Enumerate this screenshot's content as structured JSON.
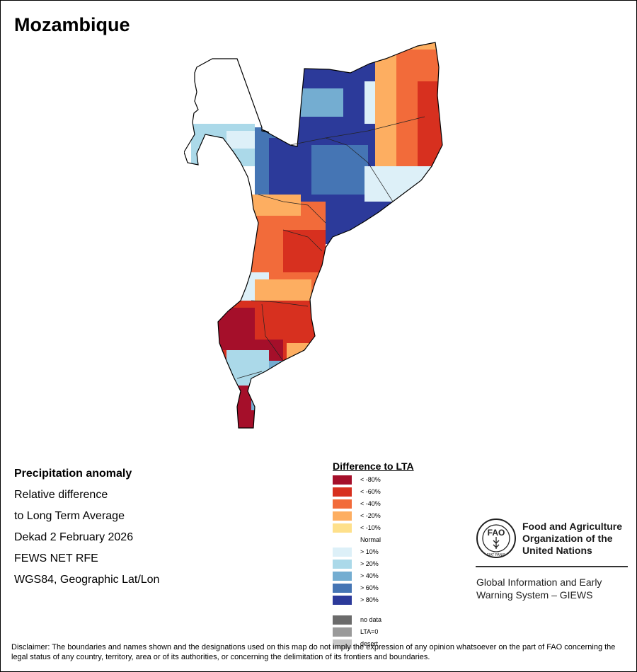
{
  "title": "Mozambique",
  "info": {
    "heading": "Precipitation anomaly",
    "lines": [
      "Relative difference",
      "to Long Term Average",
      "Dekad 2 February 2026",
      "FEWS NET RFE",
      "WGS84, Geographic Lat/Lon"
    ]
  },
  "legend": {
    "title": "Difference to LTA",
    "items": [
      {
        "label": "< -80%",
        "color": "#a50f2a"
      },
      {
        "label": "< -60%",
        "color": "#d7301f"
      },
      {
        "label": "< -40%",
        "color": "#f26b3a"
      },
      {
        "label": "< -20%",
        "color": "#fdae61"
      },
      {
        "label": "< -10%",
        "color": "#fee08b"
      },
      {
        "label": "Normal",
        "color": "#ffffff"
      },
      {
        "label": "> 10%",
        "color": "#ddf0f8"
      },
      {
        "label": "> 20%",
        "color": "#abd9e9"
      },
      {
        "label": "> 40%",
        "color": "#74add1"
      },
      {
        "label": "> 60%",
        "color": "#4575b4"
      },
      {
        "label": "> 80%",
        "color": "#2c3a9a"
      },
      {
        "label": "no data",
        "color": "#6b6b6b"
      },
      {
        "label": "LTA=0",
        "color": "#9a9a9a"
      },
      {
        "label": "desert",
        "color": "#c8c8c8"
      }
    ]
  },
  "fao": {
    "emblem_text": "FAO",
    "emblem_motto": "FIAT PANIS",
    "org_lines": [
      "Food and Agriculture",
      "Organization of the",
      "United Nations"
    ],
    "system_lines": [
      "Global Information and Early",
      "Warning System – GIEWS"
    ]
  },
  "disclaimer": "Disclaimer: The boundaries and names shown and the designations used on this map do not imply the expression of any opinion whatsoever on the part of FAO concerning the legal status of any country, territory, area or of its authorities, or concerning the delimitation of its frontiers and boundaries."
}
